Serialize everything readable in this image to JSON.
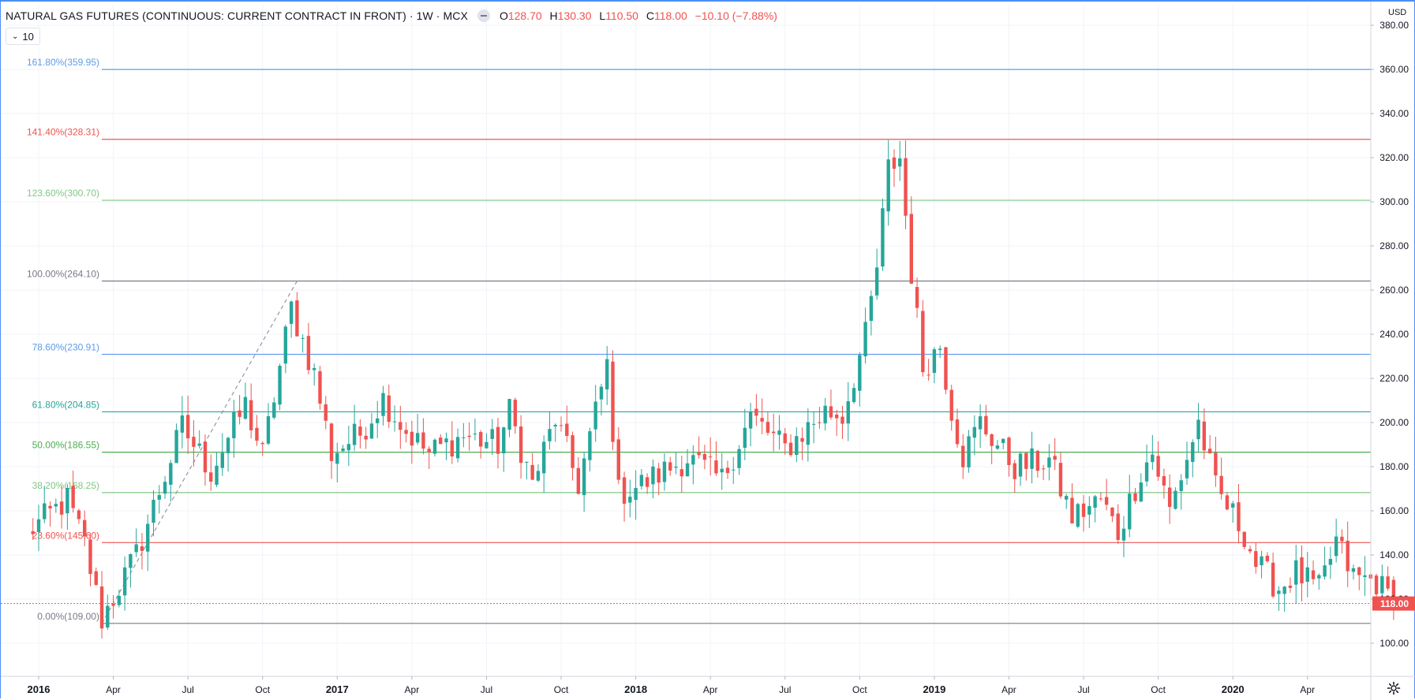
{
  "header": {
    "title": "NATURAL GAS FUTURES (CONTINUOUS: CURRENT CONTRACT IN FRONT) · 1W · MCX",
    "open_label": "O",
    "open": "128.70",
    "high_label": "H",
    "high": "130.30",
    "low_label": "L",
    "low": "110.50",
    "close_label": "C",
    "close": "118.00",
    "change": "−10.10 (−7.88%)"
  },
  "volume_toggle": {
    "icon": "chevron-down-icon",
    "label": "10"
  },
  "currency": "USD",
  "colors": {
    "up": "#26a69a",
    "down": "#ef5350",
    "accent": "#4c8ef7"
  },
  "chart_data": {
    "type": "candlestick",
    "interval": "1W",
    "last_price": 118.0,
    "last_price_label": "118.00",
    "ylim": [
      92,
      384
    ],
    "y_ticks": [
      100,
      120,
      140,
      160,
      180,
      200,
      220,
      240,
      260,
      280,
      300,
      320,
      340,
      360,
      380
    ],
    "y_tick_labels": [
      "100.00",
      "120.00",
      "140.00",
      "160.00",
      "180.00",
      "200.00",
      "220.00",
      "240.00",
      "260.00",
      "280.00",
      "300.00",
      "320.00",
      "340.00",
      "360.00",
      "380.00"
    ],
    "x_ticks": [
      {
        "week": 0,
        "label": "2016",
        "bold": true
      },
      {
        "week": 13,
        "label": "Apr",
        "bold": false
      },
      {
        "week": 26,
        "label": "Jul",
        "bold": false
      },
      {
        "week": 39,
        "label": "Oct",
        "bold": false
      },
      {
        "week": 52,
        "label": "2017",
        "bold": true
      },
      {
        "week": 65,
        "label": "Apr",
        "bold": false
      },
      {
        "week": 78,
        "label": "Jul",
        "bold": false
      },
      {
        "week": 91,
        "label": "Oct",
        "bold": false
      },
      {
        "week": 104,
        "label": "2018",
        "bold": true
      },
      {
        "week": 117,
        "label": "Apr",
        "bold": false
      },
      {
        "week": 130,
        "label": "Jul",
        "bold": false
      },
      {
        "week": 143,
        "label": "Oct",
        "bold": false
      },
      {
        "week": 156,
        "label": "2019",
        "bold": true
      },
      {
        "week": 169,
        "label": "Apr",
        "bold": false
      },
      {
        "week": 182,
        "label": "Jul",
        "bold": false
      },
      {
        "week": 195,
        "label": "Oct",
        "bold": false
      },
      {
        "week": 208,
        "label": "2020",
        "bold": true
      },
      {
        "week": 221,
        "label": "Apr",
        "bold": false
      }
    ],
    "fib_levels": [
      {
        "label": "161.80%(359.95)",
        "price": 359.95,
        "color": "#5d9cec"
      },
      {
        "label": "141.40%(328.31)",
        "price": 328.31,
        "color": "#ef5350"
      },
      {
        "label": "123.60%(300.70)",
        "price": 300.7,
        "color": "#81c784"
      },
      {
        "label": "100.00%(264.10)",
        "price": 264.1,
        "color": "#787b86"
      },
      {
        "label": "78.60%(230.91)",
        "price": 230.91,
        "color": "#5d9cec"
      },
      {
        "label": "61.80%(204.85)",
        "price": 204.85,
        "color": "#26a69a"
      },
      {
        "label": "50.00%(186.55)",
        "price": 186.55,
        "color": "#4caf50"
      },
      {
        "label": "38.20%(168.25)",
        "price": 168.25,
        "color": "#81c784"
      },
      {
        "label": "23.60%(145.60)",
        "price": 145.6,
        "color": "#ef5350"
      },
      {
        "label": "0.00%(109.00)",
        "price": 109.0,
        "color": "#787b86"
      }
    ],
    "fib_trendline": {
      "from": {
        "week": 11,
        "price": 109
      },
      "to": {
        "week": 45,
        "price": 264.1
      }
    },
    "anchor_points": [
      {
        "week": -2,
        "price": 150
      },
      {
        "week": 5,
        "price": 165
      },
      {
        "week": 8,
        "price": 145
      },
      {
        "week": 11,
        "price": 111
      },
      {
        "week": 17,
        "price": 140
      },
      {
        "week": 25,
        "price": 198
      },
      {
        "week": 30,
        "price": 178
      },
      {
        "week": 36,
        "price": 208
      },
      {
        "week": 39,
        "price": 185
      },
      {
        "week": 44,
        "price": 252
      },
      {
        "week": 48,
        "price": 222
      },
      {
        "week": 51,
        "price": 186
      },
      {
        "week": 56,
        "price": 195
      },
      {
        "week": 60,
        "price": 211
      },
      {
        "week": 64,
        "price": 196
      },
      {
        "week": 68,
        "price": 186
      },
      {
        "week": 74,
        "price": 194
      },
      {
        "week": 80,
        "price": 190
      },
      {
        "week": 82,
        "price": 205
      },
      {
        "week": 86,
        "price": 172
      },
      {
        "week": 90,
        "price": 202
      },
      {
        "week": 94,
        "price": 172
      },
      {
        "week": 99,
        "price": 226
      },
      {
        "week": 101,
        "price": 168
      },
      {
        "week": 105,
        "price": 172
      },
      {
        "week": 113,
        "price": 184
      },
      {
        "week": 119,
        "price": 174
      },
      {
        "week": 124,
        "price": 203
      },
      {
        "week": 130,
        "price": 188
      },
      {
        "week": 137,
        "price": 205
      },
      {
        "week": 140,
        "price": 203
      },
      {
        "week": 144,
        "price": 239
      },
      {
        "week": 146,
        "price": 270
      },
      {
        "week": 148,
        "price": 315
      },
      {
        "week": 150,
        "price": 320
      },
      {
        "week": 152,
        "price": 268
      },
      {
        "week": 154,
        "price": 225
      },
      {
        "week": 157,
        "price": 235
      },
      {
        "week": 159,
        "price": 206
      },
      {
        "week": 161,
        "price": 185
      },
      {
        "week": 164,
        "price": 200
      },
      {
        "week": 170,
        "price": 180
      },
      {
        "week": 176,
        "price": 183
      },
      {
        "week": 180,
        "price": 157
      },
      {
        "week": 185,
        "price": 165
      },
      {
        "week": 188,
        "price": 150
      },
      {
        "week": 192,
        "price": 178
      },
      {
        "week": 194,
        "price": 186
      },
      {
        "week": 197,
        "price": 160
      },
      {
        "week": 202,
        "price": 200
      },
      {
        "week": 205,
        "price": 170
      },
      {
        "week": 210,
        "price": 150
      },
      {
        "week": 212,
        "price": 136
      },
      {
        "week": 216,
        "price": 125
      },
      {
        "week": 219,
        "price": 132
      },
      {
        "week": 223,
        "price": 124
      },
      {
        "week": 226,
        "price": 146
      },
      {
        "week": 229,
        "price": 130
      },
      {
        "week": 233,
        "price": 128
      },
      {
        "week": 236,
        "price": 118
      }
    ],
    "final_candle": {
      "week": 236,
      "open": 128.7,
      "high": 130.3,
      "low": 110.5,
      "close": 118.0
    }
  }
}
